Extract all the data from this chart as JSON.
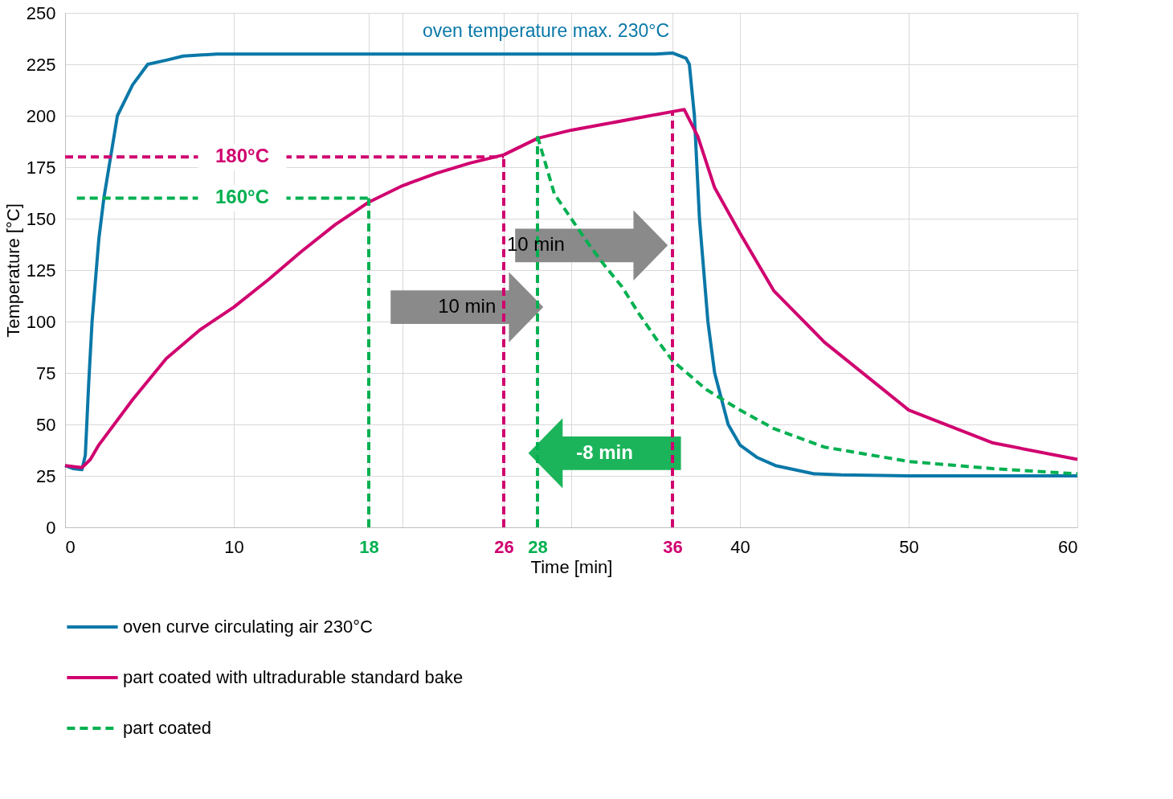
{
  "chart_data": {
    "type": "line",
    "xlabel": "Time [min]",
    "ylabel": "Temperature [°C]",
    "xlim": [
      0,
      60
    ],
    "ylim": [
      0,
      250
    ],
    "xticks": [
      0,
      10,
      18,
      {
        "value": 20,
        "label": null
      },
      26,
      28,
      {
        "value": 30,
        "label": null
      },
      36,
      40,
      50,
      60
    ],
    "yticks": [
      0,
      25,
      50,
      75,
      100,
      125,
      150,
      175,
      200,
      225,
      250
    ],
    "grid": true,
    "legend": "bottom",
    "series": [
      {
        "name": "oven curve circulating air 230°C",
        "type": "line",
        "color": "#0a78a8",
        "line_style": "solid",
        "x": [
          0,
          0.5,
          1,
          1.2,
          1.4,
          1.6,
          2,
          2.3,
          2.6,
          3.1,
          4,
          4.9,
          6,
          7,
          9,
          20,
          30,
          35,
          36,
          36.8,
          37,
          37.3,
          37.6,
          38.1,
          38.5,
          39.3,
          40,
          41,
          42.1,
          44.4,
          46,
          50,
          60
        ],
        "values": [
          30,
          28.5,
          28,
          35,
          70,
          100,
          140,
          160,
          175,
          200,
          215,
          225,
          227,
          229,
          230,
          230,
          230,
          230,
          230.5,
          228,
          225,
          200,
          150,
          100,
          75,
          50,
          40,
          34,
          30,
          26,
          25.5,
          25,
          25
        ]
      },
      {
        "name": "part coated with ultradurable standard bake",
        "type": "line",
        "color": "#d0006f",
        "line_style": "solid",
        "x": [
          0,
          1,
          1.5,
          2,
          4,
          6,
          8,
          10,
          12,
          14,
          16,
          18,
          20,
          22,
          24,
          26,
          28,
          30,
          32,
          34,
          36,
          36.7,
          37.5,
          38.5,
          40,
          42,
          45,
          50,
          55,
          60
        ],
        "values": [
          30,
          29,
          33,
          40,
          62,
          82,
          96,
          107,
          120,
          134,
          147,
          158,
          166,
          172,
          177,
          181,
          189,
          193,
          196,
          199,
          202,
          203,
          190,
          165,
          143,
          115,
          90,
          57,
          41,
          33
        ]
      },
      {
        "name": "part coated",
        "type": "line",
        "color": "#00b050",
        "line_style": "dashed",
        "x": [
          28,
          29,
          30,
          31,
          32,
          33,
          34,
          35,
          36,
          38,
          40,
          42,
          45,
          50,
          55,
          60
        ],
        "values": [
          190,
          162,
          150,
          138,
          127,
          117,
          104,
          92,
          81,
          67,
          57,
          48,
          39,
          32,
          28.5,
          26
        ]
      },
      {
        "type": "line",
        "color": "#d0006f",
        "line_style": "dashed",
        "x": [
          0,
          26
        ],
        "values": [
          180,
          180
        ]
      },
      {
        "type": "line",
        "color": "#00b050",
        "line_style": "dashed",
        "x": [
          0.7,
          18
        ],
        "values": [
          160,
          160
        ]
      },
      {
        "type": "line",
        "color": "#00b050",
        "line_style": "dashed",
        "x": [
          18,
          18
        ],
        "values": [
          0,
          160
        ]
      },
      {
        "type": "line",
        "color": "#d0006f",
        "line_style": "dashed",
        "x": [
          26,
          26
        ],
        "values": [
          0,
          180
        ]
      },
      {
        "type": "line",
        "color": "#00b050",
        "line_style": "dashed",
        "x": [
          28,
          28
        ],
        "values": [
          0,
          190
        ]
      },
      {
        "type": "line",
        "color": "#d0006f",
        "line_style": "dashed",
        "x": [
          36,
          36
        ],
        "values": [
          0,
          202
        ]
      }
    ],
    "annotations": [
      "oven temperature max. 230°C",
      {
        "text": "180°C",
        "x": 10.5,
        "y": 180
      },
      {
        "text": "160°C",
        "x": 10.5,
        "y": 160
      },
      "10 min",
      "10 min",
      "-8 min"
    ]
  }
}
